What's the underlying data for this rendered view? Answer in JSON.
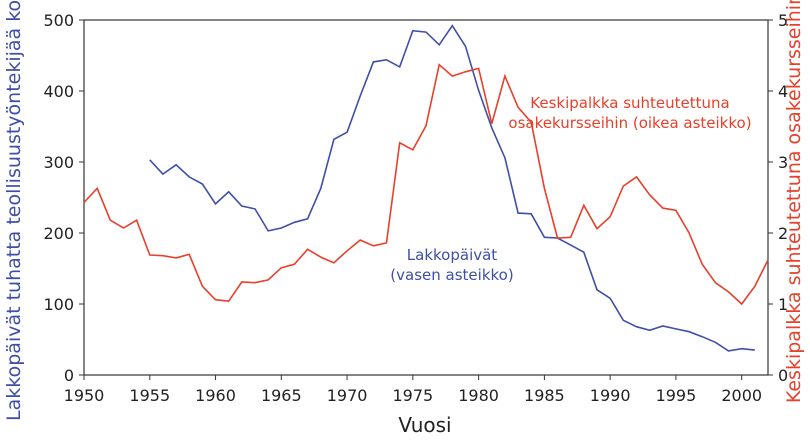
{
  "chart_data": {
    "type": "line",
    "x_label": "Vuosi",
    "y_label": "Lakkopäivät tuhatta teollisuustyöntekijää kohti",
    "y2_label": "Keskipalkka suhteutettuna osakekursseihin",
    "x": [
      1950,
      1951,
      1952,
      1953,
      1954,
      1955,
      1956,
      1957,
      1958,
      1959,
      1960,
      1961,
      1962,
      1963,
      1964,
      1965,
      1966,
      1967,
      1968,
      1969,
      1970,
      1971,
      1972,
      1973,
      1974,
      1975,
      1976,
      1977,
      1978,
      1979,
      1980,
      1981,
      1982,
      1983,
      1984,
      1985,
      1986,
      1987,
      1988,
      1989,
      1990,
      1991,
      1992,
      1993,
      1994,
      1995,
      1996,
      1997,
      1998,
      1999,
      2000,
      2001,
      2002
    ],
    "xlim": [
      1950,
      2002
    ],
    "xticks": [
      1950,
      1955,
      1960,
      1965,
      1970,
      1975,
      1980,
      1985,
      1990,
      1995,
      2000
    ],
    "ylim": [
      0,
      500
    ],
    "yticks": [
      0,
      100,
      200,
      300,
      400,
      500
    ],
    "y2lim": [
      0,
      5
    ],
    "y2ticks": [
      0,
      1,
      2,
      3,
      4,
      5
    ],
    "series": [
      {
        "name": "Lakkopäivät",
        "color": "#3f4fa8",
        "axis": "y",
        "annotation": [
          "Lakkopäivät",
          "(vasen asteikko)"
        ],
        "values": [
          null,
          null,
          null,
          null,
          null,
          303,
          283,
          296,
          279,
          269,
          241,
          258,
          238,
          234,
          203,
          207,
          215,
          220,
          263,
          332,
          342,
          393,
          441,
          444,
          434,
          485,
          483,
          465,
          492,
          463,
          401,
          348,
          306,
          228,
          227,
          194,
          193,
          183,
          173,
          120,
          108,
          77,
          68,
          63,
          69,
          65,
          61,
          54,
          46,
          34,
          37,
          35,
          null
        ]
      },
      {
        "name": "Keskipalkka",
        "color": "#e8402a",
        "axis": "y2",
        "annotation": [
          "Keskipalkka suhteutettuna",
          "osakekursseihin (oikea asteikko)"
        ],
        "values": [
          2.43,
          2.63,
          2.18,
          2.07,
          2.18,
          1.69,
          1.68,
          1.65,
          1.7,
          1.25,
          1.06,
          1.04,
          1.31,
          1.3,
          1.34,
          1.51,
          1.56,
          1.77,
          1.66,
          1.58,
          1.75,
          1.9,
          1.82,
          1.86,
          3.27,
          3.17,
          3.51,
          4.37,
          4.21,
          4.27,
          4.32,
          3.54,
          4.21,
          3.77,
          3.56,
          2.63,
          1.93,
          1.94,
          2.39,
          2.06,
          2.23,
          2.66,
          2.79,
          2.54,
          2.35,
          2.32,
          2.0,
          1.56,
          1.3,
          1.17,
          1.0,
          1.25,
          1.62
        ]
      }
    ]
  }
}
